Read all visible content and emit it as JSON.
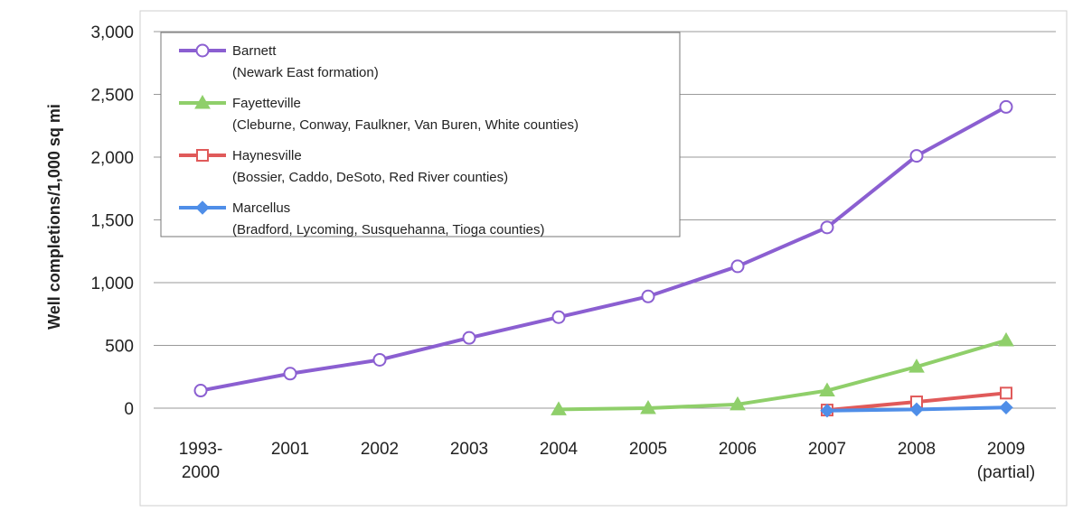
{
  "chart_data": {
    "type": "line",
    "ylabel": "Well completions/1,000 sq mi",
    "xlabel": "",
    "ylim": [
      0,
      3000
    ],
    "yticks": [
      "0",
      "500",
      "1,000",
      "1,500",
      "2,000",
      "2,500",
      "3,000"
    ],
    "ytick_values": [
      0,
      500,
      1000,
      1500,
      2000,
      2500,
      3000
    ],
    "categories": [
      [
        "1993-",
        "2000"
      ],
      [
        "2001"
      ],
      [
        "2002"
      ],
      [
        "2003"
      ],
      [
        "2004"
      ],
      [
        "2005"
      ],
      [
        "2006"
      ],
      [
        "2007"
      ],
      [
        "2008"
      ],
      [
        "2009",
        "(partial)"
      ]
    ],
    "grid": true,
    "legend_position": "top-left",
    "series": [
      {
        "name": "Barnett",
        "subtitle": "(Newark East formation)",
        "color": "#8b5fd1",
        "marker": "open-circle",
        "values": [
          140,
          275,
          385,
          560,
          725,
          890,
          1130,
          1440,
          2010,
          2400
        ]
      },
      {
        "name": "Fayetteville",
        "subtitle": "(Cleburne, Conway, Faulkner, Van Buren, White counties)",
        "color": "#8fcf6a",
        "marker": "triangle",
        "values": [
          null,
          null,
          null,
          null,
          -10,
          0,
          30,
          140,
          330,
          540
        ]
      },
      {
        "name": "Haynesville",
        "subtitle": "(Bossier, Caddo, DeSoto, Red River counties)",
        "color": "#e05a5a",
        "marker": "open-square",
        "values": [
          null,
          null,
          null,
          null,
          null,
          null,
          null,
          -15,
          50,
          120
        ]
      },
      {
        "name": "Marcellus",
        "subtitle": "(Bradford, Lycoming, Susquehanna, Tioga counties)",
        "color": "#4f8ee8",
        "marker": "diamond",
        "values": [
          null,
          null,
          null,
          null,
          null,
          null,
          null,
          -20,
          -10,
          5
        ]
      }
    ]
  }
}
